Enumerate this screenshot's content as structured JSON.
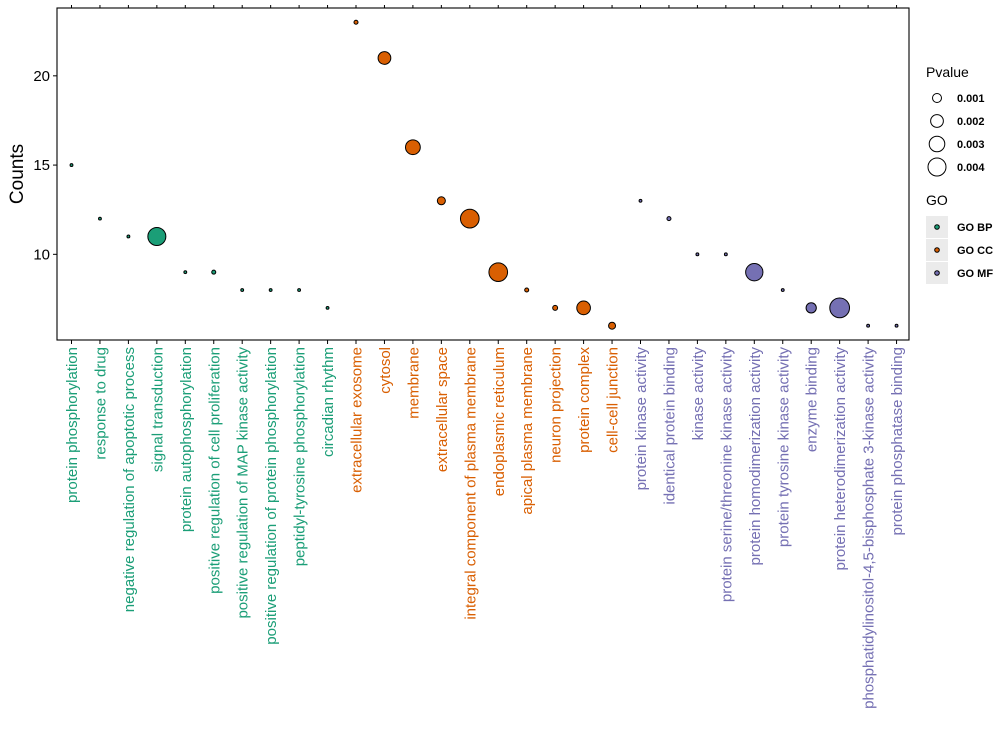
{
  "chart_data": {
    "type": "scatter",
    "title": "",
    "xlabel": "",
    "ylabel": "Counts",
    "ylim": [
      5.2,
      23.8
    ],
    "yticks": [
      10,
      15,
      20
    ],
    "groups": [
      {
        "name": "GO BP",
        "color": "#1b9e77"
      },
      {
        "name": "GO CC",
        "color": "#d95f02"
      },
      {
        "name": "GO MF",
        "color": "#7570b3"
      }
    ],
    "points": [
      {
        "term": "protein phosphorylation",
        "counts": 15,
        "pvalue": 0.0001,
        "group": "GO BP"
      },
      {
        "term": "response to drug",
        "counts": 12,
        "pvalue": 0.0001,
        "group": "GO BP"
      },
      {
        "term": "negative regulation of apoptotic process",
        "counts": 11,
        "pvalue": 0.0001,
        "group": "GO BP"
      },
      {
        "term": "signal transduction",
        "counts": 11,
        "pvalue": 0.004,
        "group": "GO BP"
      },
      {
        "term": "protein autophosphorylation",
        "counts": 9,
        "pvalue": 0.0001,
        "group": "GO BP"
      },
      {
        "term": "positive regulation of cell proliferation",
        "counts": 9,
        "pvalue": 0.0002,
        "group": "GO BP"
      },
      {
        "term": "positive regulation of MAP kinase activity",
        "counts": 8,
        "pvalue": 0.0001,
        "group": "GO BP"
      },
      {
        "term": "positive regulation of protein phosphorylation",
        "counts": 8,
        "pvalue": 0.0001,
        "group": "GO BP"
      },
      {
        "term": "peptidyl-tyrosine phosphorylation",
        "counts": 8,
        "pvalue": 0.0001,
        "group": "GO BP"
      },
      {
        "term": "circadian rhythm",
        "counts": 7,
        "pvalue": 0.0001,
        "group": "GO BP"
      },
      {
        "term": "extracellular exosome",
        "counts": 23,
        "pvalue": 0.0002,
        "group": "GO CC"
      },
      {
        "term": "cytosol",
        "counts": 21,
        "pvalue": 0.002,
        "group": "GO CC"
      },
      {
        "term": "membrane",
        "counts": 16,
        "pvalue": 0.0027,
        "group": "GO CC"
      },
      {
        "term": "extracellular space",
        "counts": 13,
        "pvalue": 0.0008,
        "group": "GO CC"
      },
      {
        "term": "integral component of plasma membrane",
        "counts": 12,
        "pvalue": 0.0043,
        "group": "GO CC"
      },
      {
        "term": "endoplasmic reticulum",
        "counts": 9,
        "pvalue": 0.0043,
        "group": "GO CC"
      },
      {
        "term": "apical plasma membrane",
        "counts": 8,
        "pvalue": 0.0002,
        "group": "GO CC"
      },
      {
        "term": "neuron projection",
        "counts": 7,
        "pvalue": 0.0003,
        "group": "GO CC"
      },
      {
        "term": "protein complex",
        "counts": 7,
        "pvalue": 0.0023,
        "group": "GO CC"
      },
      {
        "term": "cell-cell junction",
        "counts": 6,
        "pvalue": 0.0006,
        "group": "GO CC"
      },
      {
        "term": "protein kinase activity",
        "counts": 13,
        "pvalue": 0.0001,
        "group": "GO MF"
      },
      {
        "term": "identical protein binding",
        "counts": 12,
        "pvalue": 0.0002,
        "group": "GO MF"
      },
      {
        "term": "kinase activity",
        "counts": 10,
        "pvalue": 0.0001,
        "group": "GO MF"
      },
      {
        "term": "protein serine/threonine kinase activity",
        "counts": 10,
        "pvalue": 0.0001,
        "group": "GO MF"
      },
      {
        "term": "protein homodimerization activity",
        "counts": 9,
        "pvalue": 0.0037,
        "group": "GO MF"
      },
      {
        "term": "protein tyrosine kinase activity",
        "counts": 8,
        "pvalue": 0.0001,
        "group": "GO MF"
      },
      {
        "term": "enzyme binding",
        "counts": 7,
        "pvalue": 0.0013,
        "group": "GO MF"
      },
      {
        "term": "protein heterodimerization activity",
        "counts": 7,
        "pvalue": 0.0048,
        "group": "GO MF"
      },
      {
        "term": "phosphatidylinositol-4,5-bisphosphate 3-kinase activity",
        "counts": 6,
        "pvalue": 0.0001,
        "group": "GO MF"
      },
      {
        "term": "protein phosphatase binding",
        "counts": 6,
        "pvalue": 0.0001,
        "group": "GO MF"
      }
    ],
    "legend": {
      "placement": "right",
      "size_title": "Pvalue",
      "size_items": [
        {
          "label": "0.001",
          "value": 0.001
        },
        {
          "label": "0.002",
          "value": 0.002
        },
        {
          "label": "0.003",
          "value": 0.003
        },
        {
          "label": "0.004",
          "value": 0.004
        }
      ],
      "color_title": "GO",
      "color_items": [
        "GO BP",
        "GO CC",
        "GO MF"
      ]
    }
  }
}
